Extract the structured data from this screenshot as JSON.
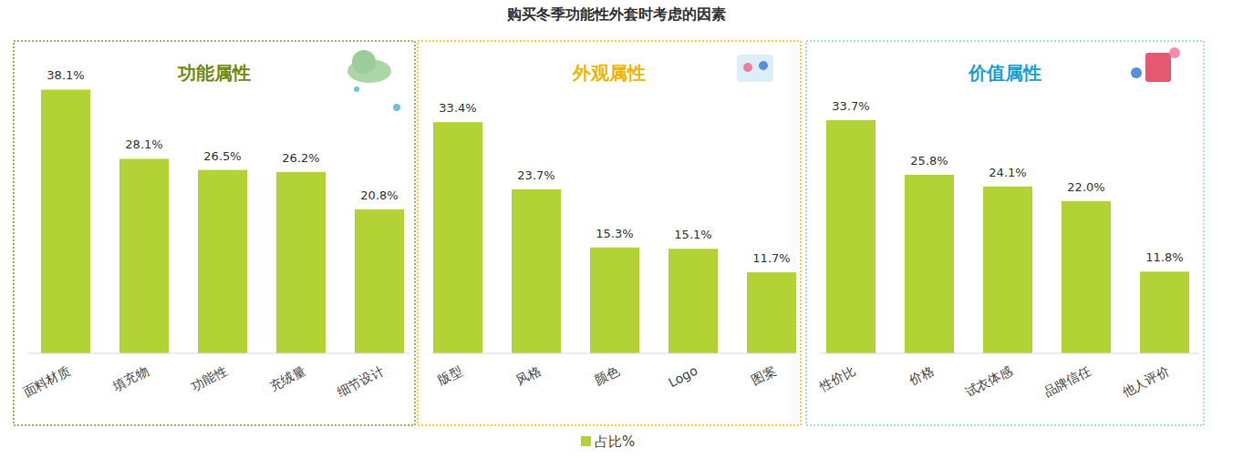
{
  "title": "购买冬季功能性外套时考虑的因素",
  "series_name": "占比%",
  "chart_data": [
    {
      "type": "bar",
      "title": "功能属性",
      "categories": [
        "面料材质",
        "填充物",
        "功能性",
        "充绒量",
        "细节设计"
      ],
      "values": [
        38.1,
        28.1,
        26.5,
        26.2,
        20.8
      ],
      "value_labels": [
        "38.1%",
        "28.1%",
        "26.5%",
        "26.2%",
        "20.8%"
      ],
      "color": "#b2d235",
      "ylim": [
        0,
        40
      ],
      "data_labels": true,
      "tick_labels": "x",
      "grid": false
    },
    {
      "type": "bar",
      "title": "外观属性",
      "categories": [
        "版型",
        "风格",
        "颜色",
        "Logo",
        "图案"
      ],
      "values": [
        33.4,
        23.7,
        15.3,
        15.1,
        11.7
      ],
      "value_labels": [
        "33.4%",
        "23.7%",
        "15.3%",
        "15.1%",
        "11.7%"
      ],
      "color": "#b2d235",
      "ylim": [
        0,
        40
      ],
      "data_labels": true,
      "tick_labels": "x",
      "grid": false
    },
    {
      "type": "bar",
      "title": "价值属性",
      "categories": [
        "性价比",
        "价格",
        "试衣体感",
        "品牌信任",
        "他人评价"
      ],
      "values": [
        33.7,
        25.8,
        24.1,
        22.0,
        11.8
      ],
      "value_labels": [
        "33.7%",
        "25.8%",
        "24.1%",
        "22.0%",
        "11.8%"
      ],
      "color": "#b2d235",
      "ylim": [
        0,
        40
      ],
      "data_labels": true,
      "tick_labels": "x",
      "grid": false
    }
  ]
}
